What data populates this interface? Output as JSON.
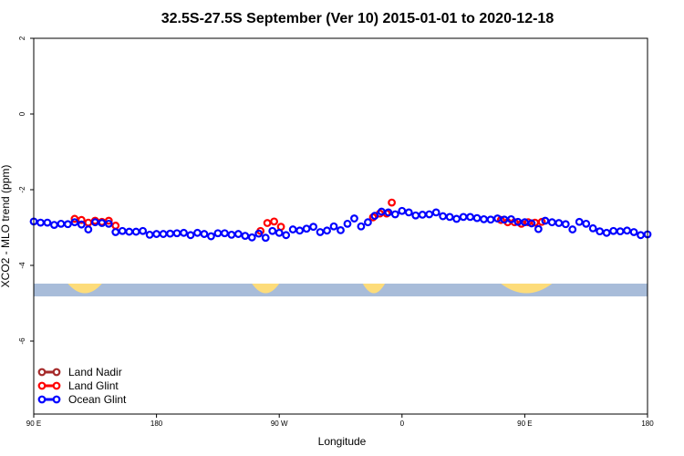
{
  "chart_data": {
    "type": "scatter",
    "title": "32.5S-27.5S September (Ver 10)   2015-01-01 to 2020-12-18",
    "xlabel": "Longitude",
    "ylabel": "XCO2 - MLO trend (ppm)",
    "xlim": [
      -180,
      180
    ],
    "ylim": [
      -8,
      2
    ],
    "x_ticks": [
      {
        "value": -180,
        "label": "90 E"
      },
      {
        "value": -108,
        "label": "180"
      },
      {
        "value": -36,
        "label": "90 W"
      },
      {
        "value": 36,
        "label": "0"
      },
      {
        "value": 108,
        "label": "90 E"
      },
      {
        "value": 180,
        "label": "180"
      }
    ],
    "y_ticks": [
      {
        "value": 2,
        "label": "2"
      },
      {
        "value": 0,
        "label": "0"
      },
      {
        "value": -2,
        "label": "-2"
      },
      {
        "value": -4,
        "label": "-4"
      },
      {
        "value": -6,
        "label": "-6"
      }
    ],
    "colors": {
      "land_nadir": "#a52a2a",
      "land_glint": "#ff0000",
      "ocean_glint": "#0000ff",
      "ocean_band": "#a8bcd9",
      "land_band": "#fddc7a"
    },
    "land_mask": {
      "y_center": -4.65,
      "land_regions": [
        [
          -160,
          -140
        ],
        [
          -52,
          -36
        ],
        [
          13,
          26
        ],
        [
          94,
          124
        ]
      ]
    },
    "series": [
      {
        "name": "Land Nadir",
        "key": "land_nadir",
        "x": [],
        "y": []
      },
      {
        "name": "Land Glint",
        "key": "land_glint",
        "x": [
          -156,
          -152,
          -148,
          -144,
          -140,
          -136,
          -132,
          -47,
          -43,
          -39,
          -35,
          19,
          23,
          27,
          30,
          94,
          98,
          102,
          106,
          110,
          114,
          118
        ],
        "y": [
          -2.77,
          -2.8,
          -2.87,
          -2.82,
          -2.85,
          -2.82,
          -2.95,
          -3.09,
          -2.88,
          -2.84,
          -2.98,
          -2.73,
          -2.63,
          -2.63,
          -2.34,
          -2.8,
          -2.86,
          -2.86,
          -2.9,
          -2.86,
          -2.87,
          -2.85
        ]
      },
      {
        "name": "Ocean Glint",
        "key": "ocean_glint",
        "x": [
          -180,
          -176,
          -172,
          -168,
          -164,
          -160,
          -156,
          -152,
          -148,
          -144,
          -140,
          -136,
          -132,
          -128,
          -124,
          -120,
          -116,
          -112,
          -108,
          -104,
          -100,
          -96,
          -92,
          -88,
          -84,
          -80,
          -76,
          -72,
          -68,
          -64,
          -60,
          -56,
          -52,
          -48,
          -44,
          -40,
          -36,
          -32,
          -28,
          -24,
          -20,
          -16,
          -12,
          -8,
          -4,
          0,
          4,
          8,
          12,
          16,
          20,
          24,
          28,
          32,
          36,
          40,
          44,
          48,
          52,
          56,
          60,
          64,
          68,
          72,
          76,
          80,
          84,
          88,
          92,
          96,
          100,
          104,
          108,
          112,
          116,
          120,
          124,
          128,
          132,
          136,
          140,
          144,
          148,
          152,
          156,
          160,
          164,
          168,
          172,
          176,
          180
        ],
        "y": [
          -2.84,
          -2.87,
          -2.87,
          -2.93,
          -2.9,
          -2.91,
          -2.86,
          -2.92,
          -3.05,
          -2.86,
          -2.88,
          -2.9,
          -3.12,
          -3.09,
          -3.11,
          -3.11,
          -3.09,
          -3.19,
          -3.17,
          -3.17,
          -3.16,
          -3.15,
          -3.14,
          -3.2,
          -3.14,
          -3.17,
          -3.23,
          -3.15,
          -3.15,
          -3.19,
          -3.17,
          -3.22,
          -3.26,
          -3.16,
          -3.27,
          -3.09,
          -3.14,
          -3.2,
          -3.05,
          -3.08,
          -3.03,
          -2.98,
          -3.12,
          -3.08,
          -2.97,
          -3.07,
          -2.9,
          -2.76,
          -2.97,
          -2.86,
          -2.69,
          -2.58,
          -2.6,
          -2.65,
          -2.56,
          -2.6,
          -2.68,
          -2.66,
          -2.65,
          -2.6,
          -2.7,
          -2.72,
          -2.77,
          -2.72,
          -2.72,
          -2.75,
          -2.78,
          -2.79,
          -2.76,
          -2.79,
          -2.78,
          -2.85,
          -2.86,
          -2.89,
          -3.04,
          -2.82,
          -2.86,
          -2.88,
          -2.91,
          -3.05,
          -2.85,
          -2.9,
          -3.02,
          -3.1,
          -3.14,
          -3.09,
          -3.1,
          -3.08,
          -3.12,
          -3.2,
          -3.18
        ]
      }
    ],
    "legend": {
      "position": "bottom-left",
      "entries": [
        "Land Nadir",
        "Land Glint",
        "Ocean Glint"
      ]
    }
  }
}
